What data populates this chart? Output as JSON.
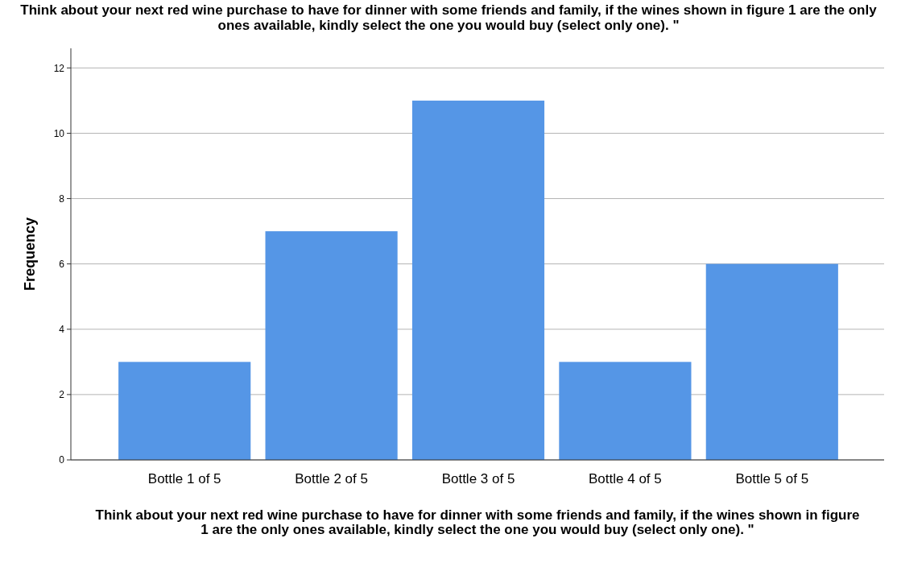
{
  "chart_data": {
    "type": "bar",
    "title": "Think about your next red wine purchase to have for dinner with some friends and family, if the wines shown in figure 1 are the only ones available, kindly select the one you would buy (select only one). \"",
    "xlabel": "Think about your next red wine purchase to have for dinner with some friends and family, if the wines shown in figure 1 are the only ones available, kindly select the one you would buy (select only one). \"",
    "ylabel": "Frequency",
    "categories": [
      "Bottle 1 of 5",
      "Bottle 2 of 5",
      "Bottle 3 of 5",
      "Bottle 4 of 5",
      "Bottle 5 of 5"
    ],
    "values": [
      3,
      7,
      11,
      3,
      6
    ],
    "color": "#5596e6",
    "ylim": [
      0,
      12.6
    ],
    "yticks": [
      0,
      2,
      4,
      6,
      8,
      10,
      12
    ],
    "grid": "y"
  }
}
